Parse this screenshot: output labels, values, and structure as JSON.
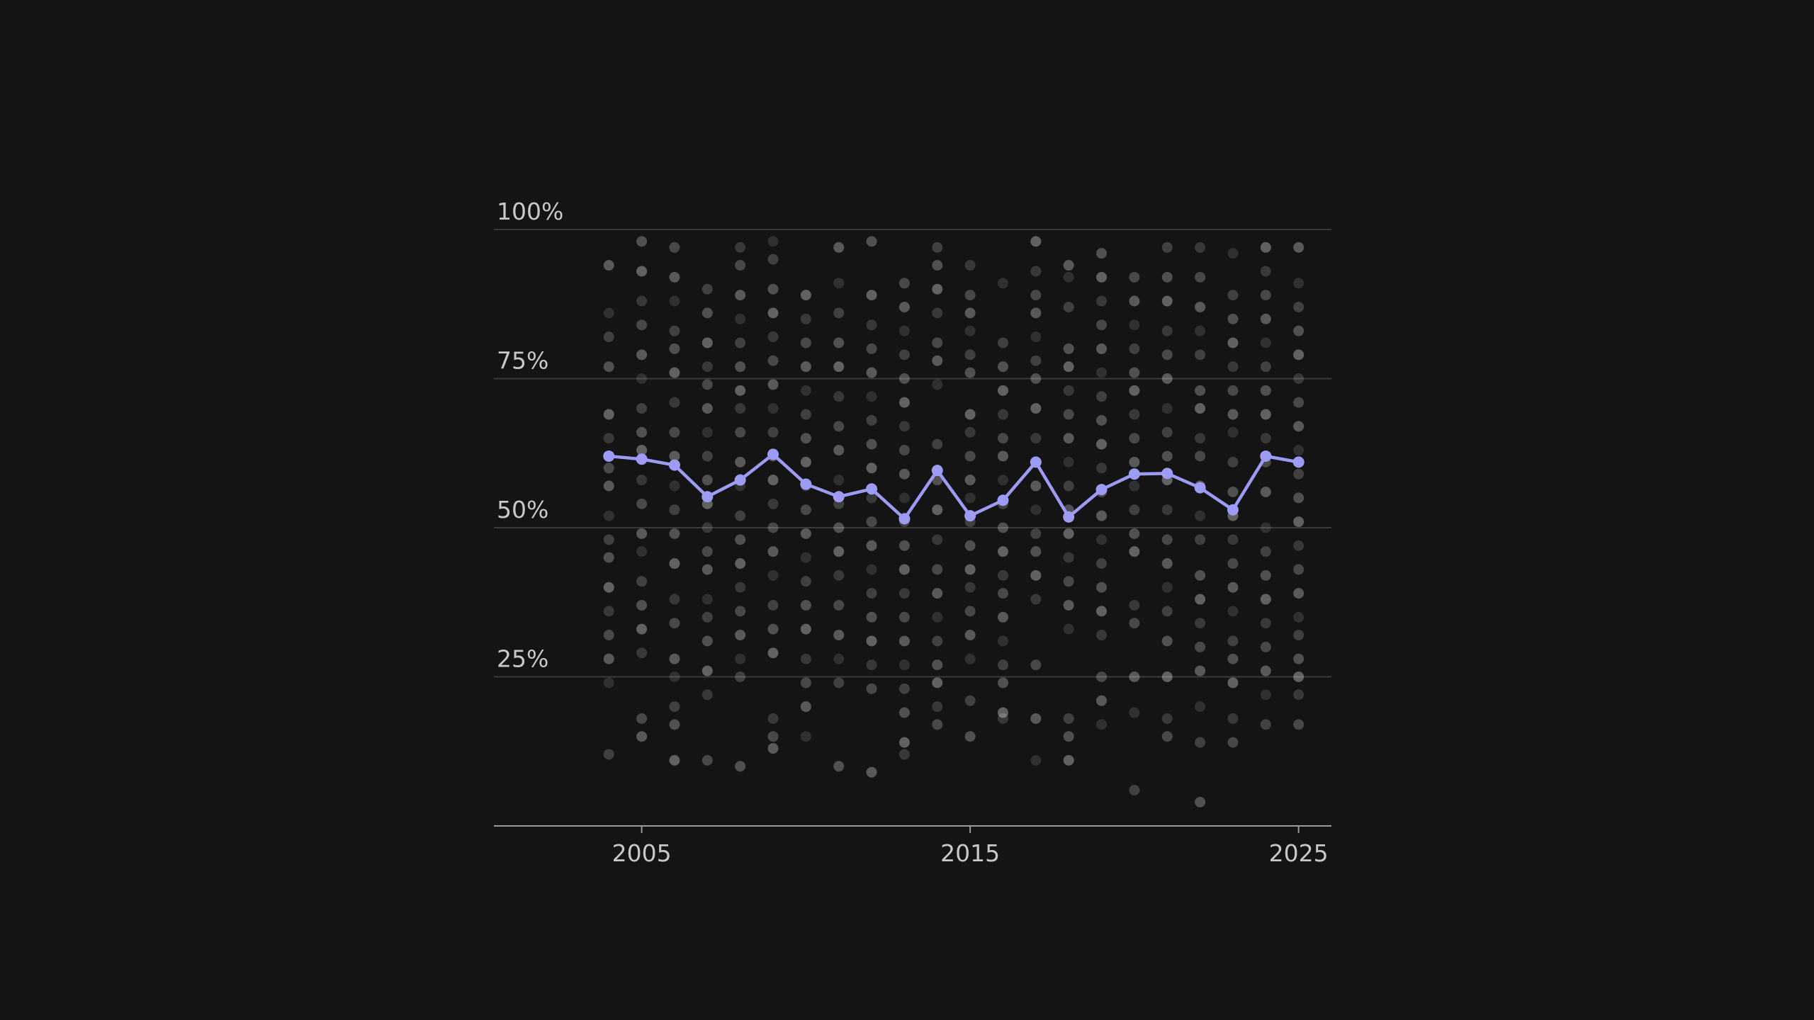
{
  "colors": {
    "background": "#141414",
    "grid": "#3a3a3a",
    "axis": "#9a9a9a",
    "tick_text": "#c8c8c8",
    "scatter_point": "#ffffff",
    "mean_line": "#9c9cf4"
  },
  "chart_data": {
    "type": "line",
    "title": "",
    "xlabel": "",
    "ylabel": "",
    "xlim": [
      2000.5,
      2026
    ],
    "ylim": [
      0,
      100
    ],
    "grid": true,
    "legend": "none",
    "x_ticks": [
      2005,
      2015,
      2025
    ],
    "x_tick_labels": [
      "2005",
      "2015",
      "2025"
    ],
    "y_ticks": [
      25,
      50,
      75,
      100
    ],
    "y_tick_labels": [
      "25%",
      "50%",
      "75%",
      "100%"
    ],
    "series": [
      {
        "kind": "line",
        "x": [
          2004,
          2005,
          2006,
          2007,
          2008,
          2009,
          2010,
          2011,
          2012,
          2013,
          2014,
          2015,
          2016,
          2017,
          2018,
          2019,
          2020,
          2021,
          2022,
          2023,
          2024,
          2025
        ],
        "y": [
          62,
          61.5,
          60.5,
          55.2,
          58,
          62.3,
          57.3,
          55.2,
          56.5,
          51.5,
          59.6,
          52,
          54.6,
          61,
          51.8,
          56.4,
          59,
          59.1,
          56.7,
          53,
          62,
          61
        ]
      },
      {
        "kind": "scatter",
        "points": [
          {
            "x": 2004,
            "y": [
              94,
              86,
              82,
              77,
              69,
              65,
              60,
              57,
              52,
              48,
              45,
              40,
              36,
              32,
              28,
              24,
              12
            ]
          },
          {
            "x": 2005,
            "y": [
              98,
              93,
              88,
              84,
              79,
              75,
              70,
              66,
              63,
              58,
              54,
              49,
              46,
              41,
              37,
              33,
              29,
              18,
              15
            ]
          },
          {
            "x": 2006,
            "y": [
              97,
              92,
              88,
              83,
              80,
              76,
              71,
              66,
              62,
              57,
              53,
              49,
              44,
              38,
              34,
              28,
              25,
              20,
              17,
              11
            ]
          },
          {
            "x": 2007,
            "y": [
              90,
              86,
              81,
              77,
              74,
              70,
              66,
              62,
              58,
              54,
              50,
              46,
              43,
              38,
              35,
              31,
              26,
              22,
              11
            ]
          },
          {
            "x": 2008,
            "y": [
              97,
              94,
              89,
              85,
              81,
              77,
              73,
              70,
              66,
              61,
              57,
              52,
              48,
              44,
              40,
              36,
              32,
              28,
              25,
              10
            ]
          },
          {
            "x": 2009,
            "y": [
              98,
              95,
              90,
              86,
              82,
              78,
              74,
              70,
              66,
              62,
              58,
              54,
              50,
              46,
              42,
              37,
              33,
              29,
              18,
              15,
              13
            ]
          },
          {
            "x": 2010,
            "y": [
              89,
              85,
              81,
              77,
              73,
              69,
              65,
              61,
              57,
              53,
              49,
              45,
              41,
              37,
              33,
              28,
              24,
              20,
              15
            ]
          },
          {
            "x": 2011,
            "y": [
              97,
              91,
              86,
              81,
              77,
              72,
              67,
              63,
              58,
              54,
              50,
              46,
              42,
              37,
              32,
              28,
              24,
              10
            ]
          },
          {
            "x": 2012,
            "y": [
              98,
              89,
              84,
              80,
              76,
              72,
              68,
              64,
              60,
              55,
              51,
              47,
              43,
              39,
              35,
              31,
              27,
              23,
              9
            ]
          },
          {
            "x": 2013,
            "y": [
              91,
              87,
              83,
              79,
              75,
              71,
              67,
              63,
              59,
              55,
              51,
              47,
              43,
              39,
              35,
              31,
              27,
              23,
              19,
              14,
              12
            ]
          },
          {
            "x": 2014,
            "y": [
              97,
              94,
              90,
              86,
              81,
              78,
              74,
              64,
              58,
              53,
              48,
              43,
              39,
              35,
              31,
              27,
              24,
              20,
              17
            ]
          },
          {
            "x": 2015,
            "y": [
              94,
              89,
              86,
              83,
              79,
              76,
              69,
              66,
              62,
              58,
              55,
              51,
              47,
              43,
              40,
              36,
              32,
              28,
              21,
              15
            ]
          },
          {
            "x": 2016,
            "y": [
              91,
              81,
              77,
              73,
              69,
              65,
              62,
              58,
              54,
              50,
              46,
              42,
              39,
              35,
              31,
              27,
              24,
              19,
              18
            ]
          },
          {
            "x": 2017,
            "y": [
              98,
              93,
              89,
              86,
              82,
              78,
              75,
              70,
              65,
              61,
              57,
              53,
              49,
              46,
              42,
              38,
              27,
              18,
              11
            ]
          },
          {
            "x": 2018,
            "y": [
              94,
              92,
              87,
              80,
              77,
              73,
              69,
              65,
              61,
              57,
              53,
              49,
              45,
              41,
              37,
              33,
              18,
              15,
              11
            ]
          },
          {
            "x": 2019,
            "y": [
              96,
              92,
              88,
              84,
              80,
              76,
              72,
              68,
              64,
              60,
              56,
              52,
              48,
              44,
              40,
              36,
              32,
              25,
              21,
              17
            ]
          },
          {
            "x": 2020,
            "y": [
              92,
              88,
              84,
              80,
              76,
              73,
              69,
              65,
              61,
              57,
              53,
              49,
              46,
              37,
              34,
              25,
              19,
              6
            ]
          },
          {
            "x": 2021,
            "y": [
              97,
              92,
              88,
              83,
              79,
              75,
              70,
              66,
              62,
              58,
              53,
              48,
              44,
              40,
              36,
              31,
              25,
              18,
              15
            ]
          },
          {
            "x": 2022,
            "y": [
              97,
              92,
              87,
              83,
              79,
              73,
              70,
              65,
              62,
              57,
              52,
              48,
              42,
              38,
              34,
              30,
              26,
              20,
              14,
              4
            ]
          },
          {
            "x": 2023,
            "y": [
              96,
              89,
              85,
              81,
              77,
              73,
              69,
              66,
              61,
              56,
              52,
              48,
              44,
              40,
              36,
              31,
              28,
              24,
              18,
              14
            ]
          },
          {
            "x": 2024,
            "y": [
              97,
              93,
              89,
              85,
              81,
              77,
              73,
              69,
              65,
              61,
              56,
              50,
              46,
              42,
              38,
              34,
              30,
              26,
              22,
              17
            ]
          },
          {
            "x": 2025,
            "y": [
              97,
              91,
              87,
              83,
              79,
              75,
              71,
              67,
              63,
              59,
              55,
              51,
              47,
              43,
              39,
              35,
              32,
              28,
              25,
              22,
              17
            ]
          }
        ]
      }
    ]
  }
}
